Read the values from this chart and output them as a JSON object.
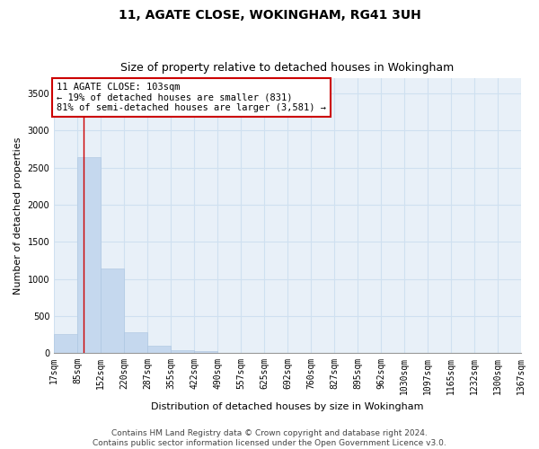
{
  "title1": "11, AGATE CLOSE, WOKINGHAM, RG41 3UH",
  "title2": "Size of property relative to detached houses in Wokingham",
  "xlabel": "Distribution of detached houses by size in Wokingham",
  "ylabel": "Number of detached properties",
  "bar_color": "#c5d8ee",
  "grid_color": "#cfe0f0",
  "background_color": "#e8f0f8",
  "annotation_text": "11 AGATE CLOSE: 103sqm\n← 19% of detached houses are smaller (831)\n81% of semi-detached houses are larger (3,581) →",
  "property_sqm": 103,
  "categories": [
    "17sqm",
    "85sqm",
    "152sqm",
    "220sqm",
    "287sqm",
    "355sqm",
    "422sqm",
    "490sqm",
    "557sqm",
    "625sqm",
    "692sqm",
    "760sqm",
    "827sqm",
    "895sqm",
    "962sqm",
    "1030sqm",
    "1097sqm",
    "1165sqm",
    "1232sqm",
    "1300sqm",
    "1367sqm"
  ],
  "bin_edges": [
    17,
    85,
    152,
    220,
    287,
    355,
    422,
    490,
    557,
    625,
    692,
    760,
    827,
    895,
    962,
    1030,
    1097,
    1165,
    1232,
    1300,
    1367
  ],
  "values": [
    260,
    2640,
    1140,
    280,
    95,
    40,
    28,
    0,
    0,
    0,
    0,
    0,
    0,
    0,
    0,
    0,
    0,
    0,
    0,
    0
  ],
  "ylim": [
    0,
    3700
  ],
  "yticks": [
    0,
    500,
    1000,
    1500,
    2000,
    2500,
    3000,
    3500
  ],
  "footnote": "Contains HM Land Registry data © Crown copyright and database right 2024.\nContains public sector information licensed under the Open Government Licence v3.0.",
  "title_fontsize": 10,
  "subtitle_fontsize": 9,
  "axis_label_fontsize": 8,
  "tick_fontsize": 7,
  "footnote_fontsize": 6.5
}
